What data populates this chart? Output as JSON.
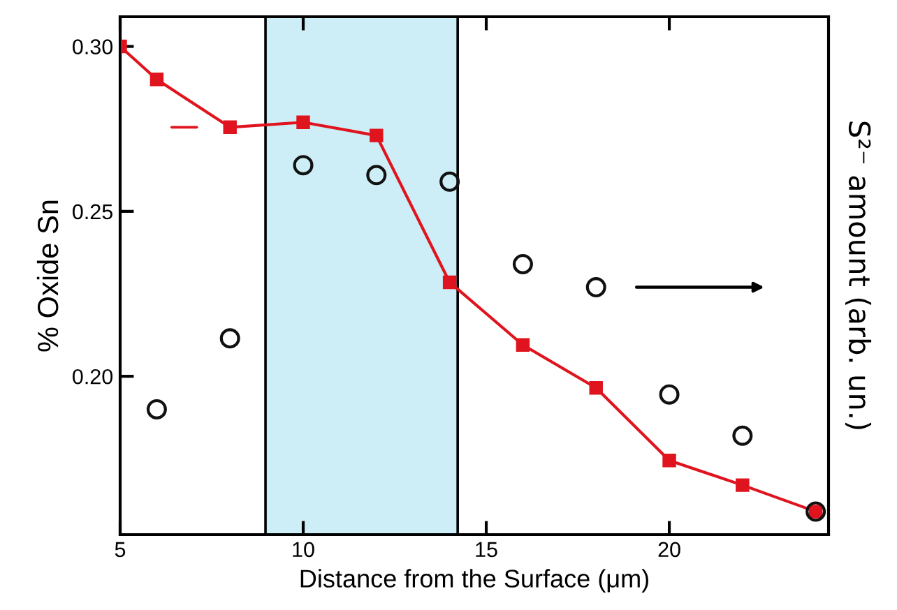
{
  "chart_data": {
    "type": "line",
    "xlabel": "Distance from the Surface (μm)",
    "ylabel": "% Oxide Sn",
    "y2label": "S²⁻ amount (arb. un.)",
    "xlim": [
      5,
      24.35
    ],
    "xticks": [
      5,
      10,
      15,
      20
    ],
    "ylim": [
      0.152,
      0.309
    ],
    "yticks": [
      {
        "value": 0.2,
        "label": "0.20"
      },
      {
        "value": 0.25,
        "label": "0.25"
      },
      {
        "value": 0.3,
        "label": "0.30"
      }
    ],
    "grid": false,
    "legend": false,
    "series": [
      {
        "color": "#e0141e",
        "marker": "square",
        "x": [
          5,
          6,
          8,
          10,
          12,
          14,
          16,
          18,
          20,
          22,
          24
        ],
        "values": [
          0.3,
          0.29,
          0.2755,
          0.277,
          0.273,
          0.2285,
          0.2095,
          0.1965,
          0.1745,
          0.167,
          0.159
        ]
      },
      {
        "type": "scatter",
        "color": "#111111",
        "marker": "circle",
        "x": [
          6,
          8,
          10,
          12,
          14,
          16,
          18,
          20,
          22,
          24
        ],
        "values": [
          0.19,
          0.2115,
          0.264,
          0.261,
          0.259,
          0.234,
          0.227,
          0.1945,
          0.182,
          0.159
        ]
      }
    ],
    "bands": [
      {
        "axis": "x",
        "from": 8.97,
        "to": 14.22,
        "color": "#cdeef6"
      }
    ]
  }
}
